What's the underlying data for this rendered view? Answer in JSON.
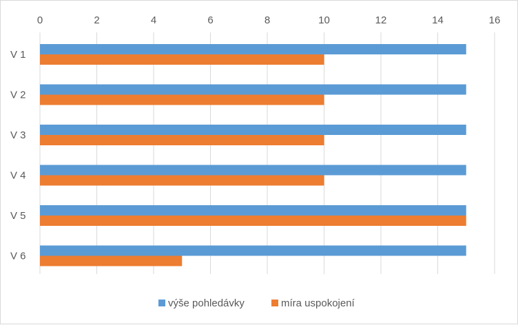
{
  "chart_data": {
    "type": "bar",
    "orientation": "horizontal",
    "categories": [
      "V 1",
      "V 2",
      "V 3",
      "V 4",
      "V 5",
      "V 6"
    ],
    "series": [
      {
        "name": "výše pohledávky",
        "color": "#5b9bd5",
        "values": [
          15,
          15,
          15,
          15,
          15,
          15
        ]
      },
      {
        "name": "míra uspokojení",
        "color": "#ed7d31",
        "values": [
          10,
          10,
          10,
          10,
          15,
          5
        ]
      }
    ],
    "xlim": [
      0,
      16
    ],
    "x_ticks": [
      "0",
      "2",
      "4",
      "6",
      "8",
      "10",
      "12",
      "14",
      "16"
    ],
    "x_axis_position": "top",
    "grid": true,
    "legend_position": "bottom",
    "title": "",
    "xlabel": "",
    "ylabel": ""
  }
}
